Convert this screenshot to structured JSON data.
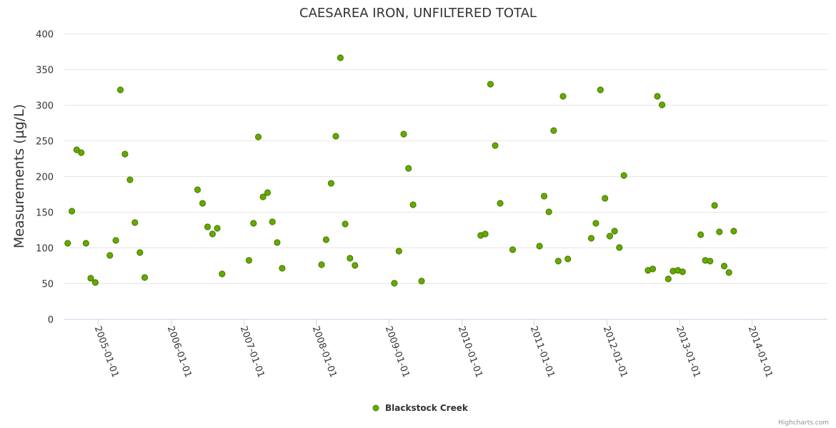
{
  "chart_data": {
    "type": "scatter",
    "title": "CAESAREA IRON, UNFILTERED TOTAL",
    "xlabel": "",
    "ylabel": "Measurements (µg/L)",
    "ylim": [
      0,
      400
    ],
    "yticks": [
      0,
      50,
      100,
      150,
      200,
      250,
      300,
      350,
      400
    ],
    "xrange": [
      "2004-07-15",
      "2015-01-15"
    ],
    "xticks": [
      "2005-01-01",
      "2006-01-01",
      "2007-01-01",
      "2008-01-01",
      "2009-01-01",
      "2010-01-01",
      "2011-01-01",
      "2012-01-01",
      "2013-01-01",
      "2014-01-01"
    ],
    "grid": true,
    "legend_position": "bottom-center",
    "series": [
      {
        "name": "Blackstock Creek",
        "color": "#66aa00",
        "edge_color": "#4c8000",
        "points": [
          [
            "2004-08-01",
            106
          ],
          [
            "2004-08-22",
            151
          ],
          [
            "2004-09-15",
            237
          ],
          [
            "2004-10-08",
            233
          ],
          [
            "2004-11-01",
            106
          ],
          [
            "2004-11-25",
            57
          ],
          [
            "2004-12-18",
            51
          ],
          [
            "2005-03-01",
            89
          ],
          [
            "2005-03-31",
            110
          ],
          [
            "2005-04-23",
            321
          ],
          [
            "2005-05-16",
            231
          ],
          [
            "2005-06-10",
            195
          ],
          [
            "2005-07-05",
            135
          ],
          [
            "2005-07-30",
            93
          ],
          [
            "2005-08-23",
            58
          ],
          [
            "2006-05-16",
            181
          ],
          [
            "2006-06-10",
            162
          ],
          [
            "2006-07-05",
            129
          ],
          [
            "2006-07-30",
            119
          ],
          [
            "2006-08-23",
            127
          ],
          [
            "2006-09-16",
            63
          ],
          [
            "2007-01-29",
            82
          ],
          [
            "2007-02-21",
            134
          ],
          [
            "2007-03-17",
            255
          ],
          [
            "2007-04-10",
            171
          ],
          [
            "2007-05-03",
            177
          ],
          [
            "2007-05-27",
            136
          ],
          [
            "2007-06-20",
            107
          ],
          [
            "2007-07-15",
            71
          ],
          [
            "2008-01-29",
            76
          ],
          [
            "2008-02-21",
            111
          ],
          [
            "2008-03-17",
            190
          ],
          [
            "2008-04-10",
            256
          ],
          [
            "2008-05-03",
            366
          ],
          [
            "2008-05-27",
            133
          ],
          [
            "2008-06-20",
            85
          ],
          [
            "2008-07-15",
            75
          ],
          [
            "2009-01-29",
            50
          ],
          [
            "2009-02-21",
            95
          ],
          [
            "2009-03-17",
            259
          ],
          [
            "2009-04-10",
            211
          ],
          [
            "2009-05-03",
            160
          ],
          [
            "2009-06-15",
            53
          ],
          [
            "2010-04-08",
            117
          ],
          [
            "2010-05-01",
            119
          ],
          [
            "2010-05-27",
            329
          ],
          [
            "2010-06-20",
            243
          ],
          [
            "2010-07-15",
            162
          ],
          [
            "2010-09-16",
            97
          ],
          [
            "2011-01-29",
            102
          ],
          [
            "2011-02-21",
            172
          ],
          [
            "2011-03-17",
            150
          ],
          [
            "2011-04-10",
            264
          ],
          [
            "2011-05-03",
            81
          ],
          [
            "2011-05-27",
            312
          ],
          [
            "2011-06-20",
            84
          ],
          [
            "2011-10-16",
            113
          ],
          [
            "2011-11-08",
            134
          ],
          [
            "2011-12-01",
            321
          ],
          [
            "2011-12-24",
            169
          ],
          [
            "2012-01-17",
            116
          ],
          [
            "2012-02-10",
            123
          ],
          [
            "2012-03-05",
            100
          ],
          [
            "2012-03-28",
            201
          ],
          [
            "2012-07-27",
            68
          ],
          [
            "2012-08-20",
            70
          ],
          [
            "2012-09-12",
            312
          ],
          [
            "2012-10-06",
            300
          ],
          [
            "2012-11-06",
            56
          ],
          [
            "2012-11-30",
            67
          ],
          [
            "2012-12-24",
            68
          ],
          [
            "2013-01-17",
            66
          ],
          [
            "2013-04-18",
            118
          ],
          [
            "2013-05-11",
            82
          ],
          [
            "2013-06-04",
            81
          ],
          [
            "2013-06-27",
            159
          ],
          [
            "2013-07-21",
            122
          ],
          [
            "2013-08-14",
            74
          ],
          [
            "2013-09-07",
            65
          ],
          [
            "2013-10-01",
            123
          ]
        ]
      }
    ]
  },
  "credits": "Highcharts.com"
}
